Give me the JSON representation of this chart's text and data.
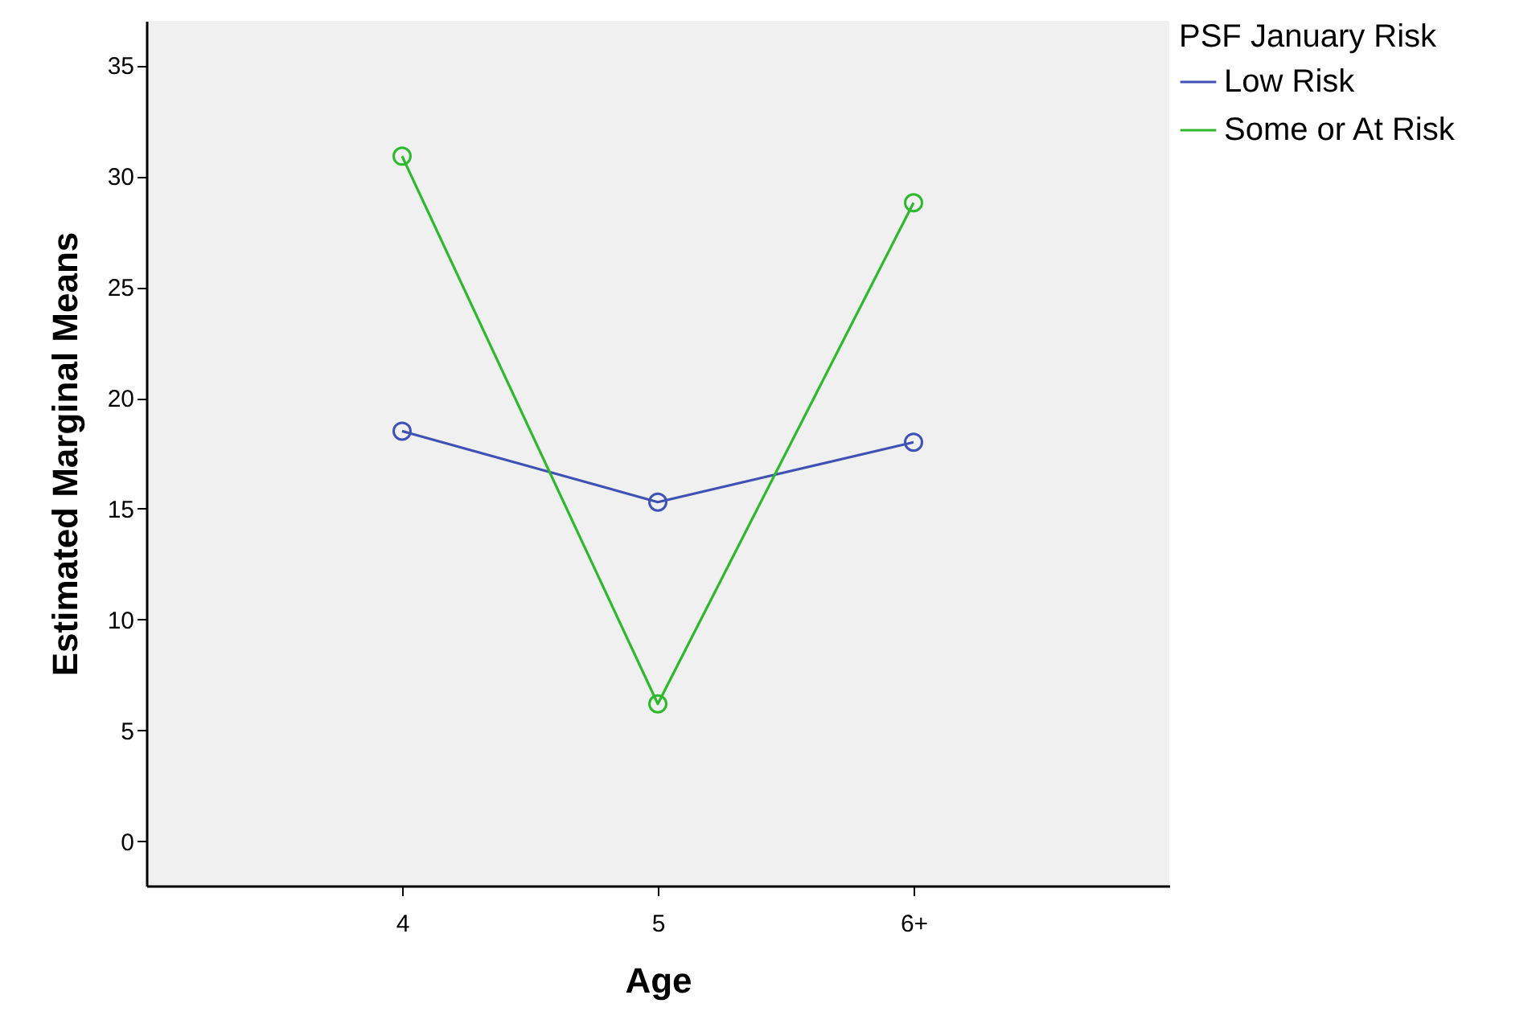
{
  "chart_data": {
    "type": "line",
    "xlabel": "Age",
    "ylabel": "Estimated Marginal Means",
    "legend_title": "PSF January Risk",
    "categories": [
      "4",
      "5",
      "6+"
    ],
    "series": [
      {
        "name": "Low Risk",
        "color": "#3f51b5",
        "values": [
          18.5,
          15.3,
          18.0
        ]
      },
      {
        "name": "Some or At Risk",
        "color": "#2eb82e",
        "values": [
          30.9,
          6.2,
          28.8
        ]
      }
    ],
    "ylim": [
      -2,
      37
    ],
    "yticks": [
      0,
      5,
      10,
      15,
      20,
      25,
      30,
      35
    ],
    "grid": false,
    "legend": "top right",
    "marker": "circle",
    "line_style": "solid"
  }
}
